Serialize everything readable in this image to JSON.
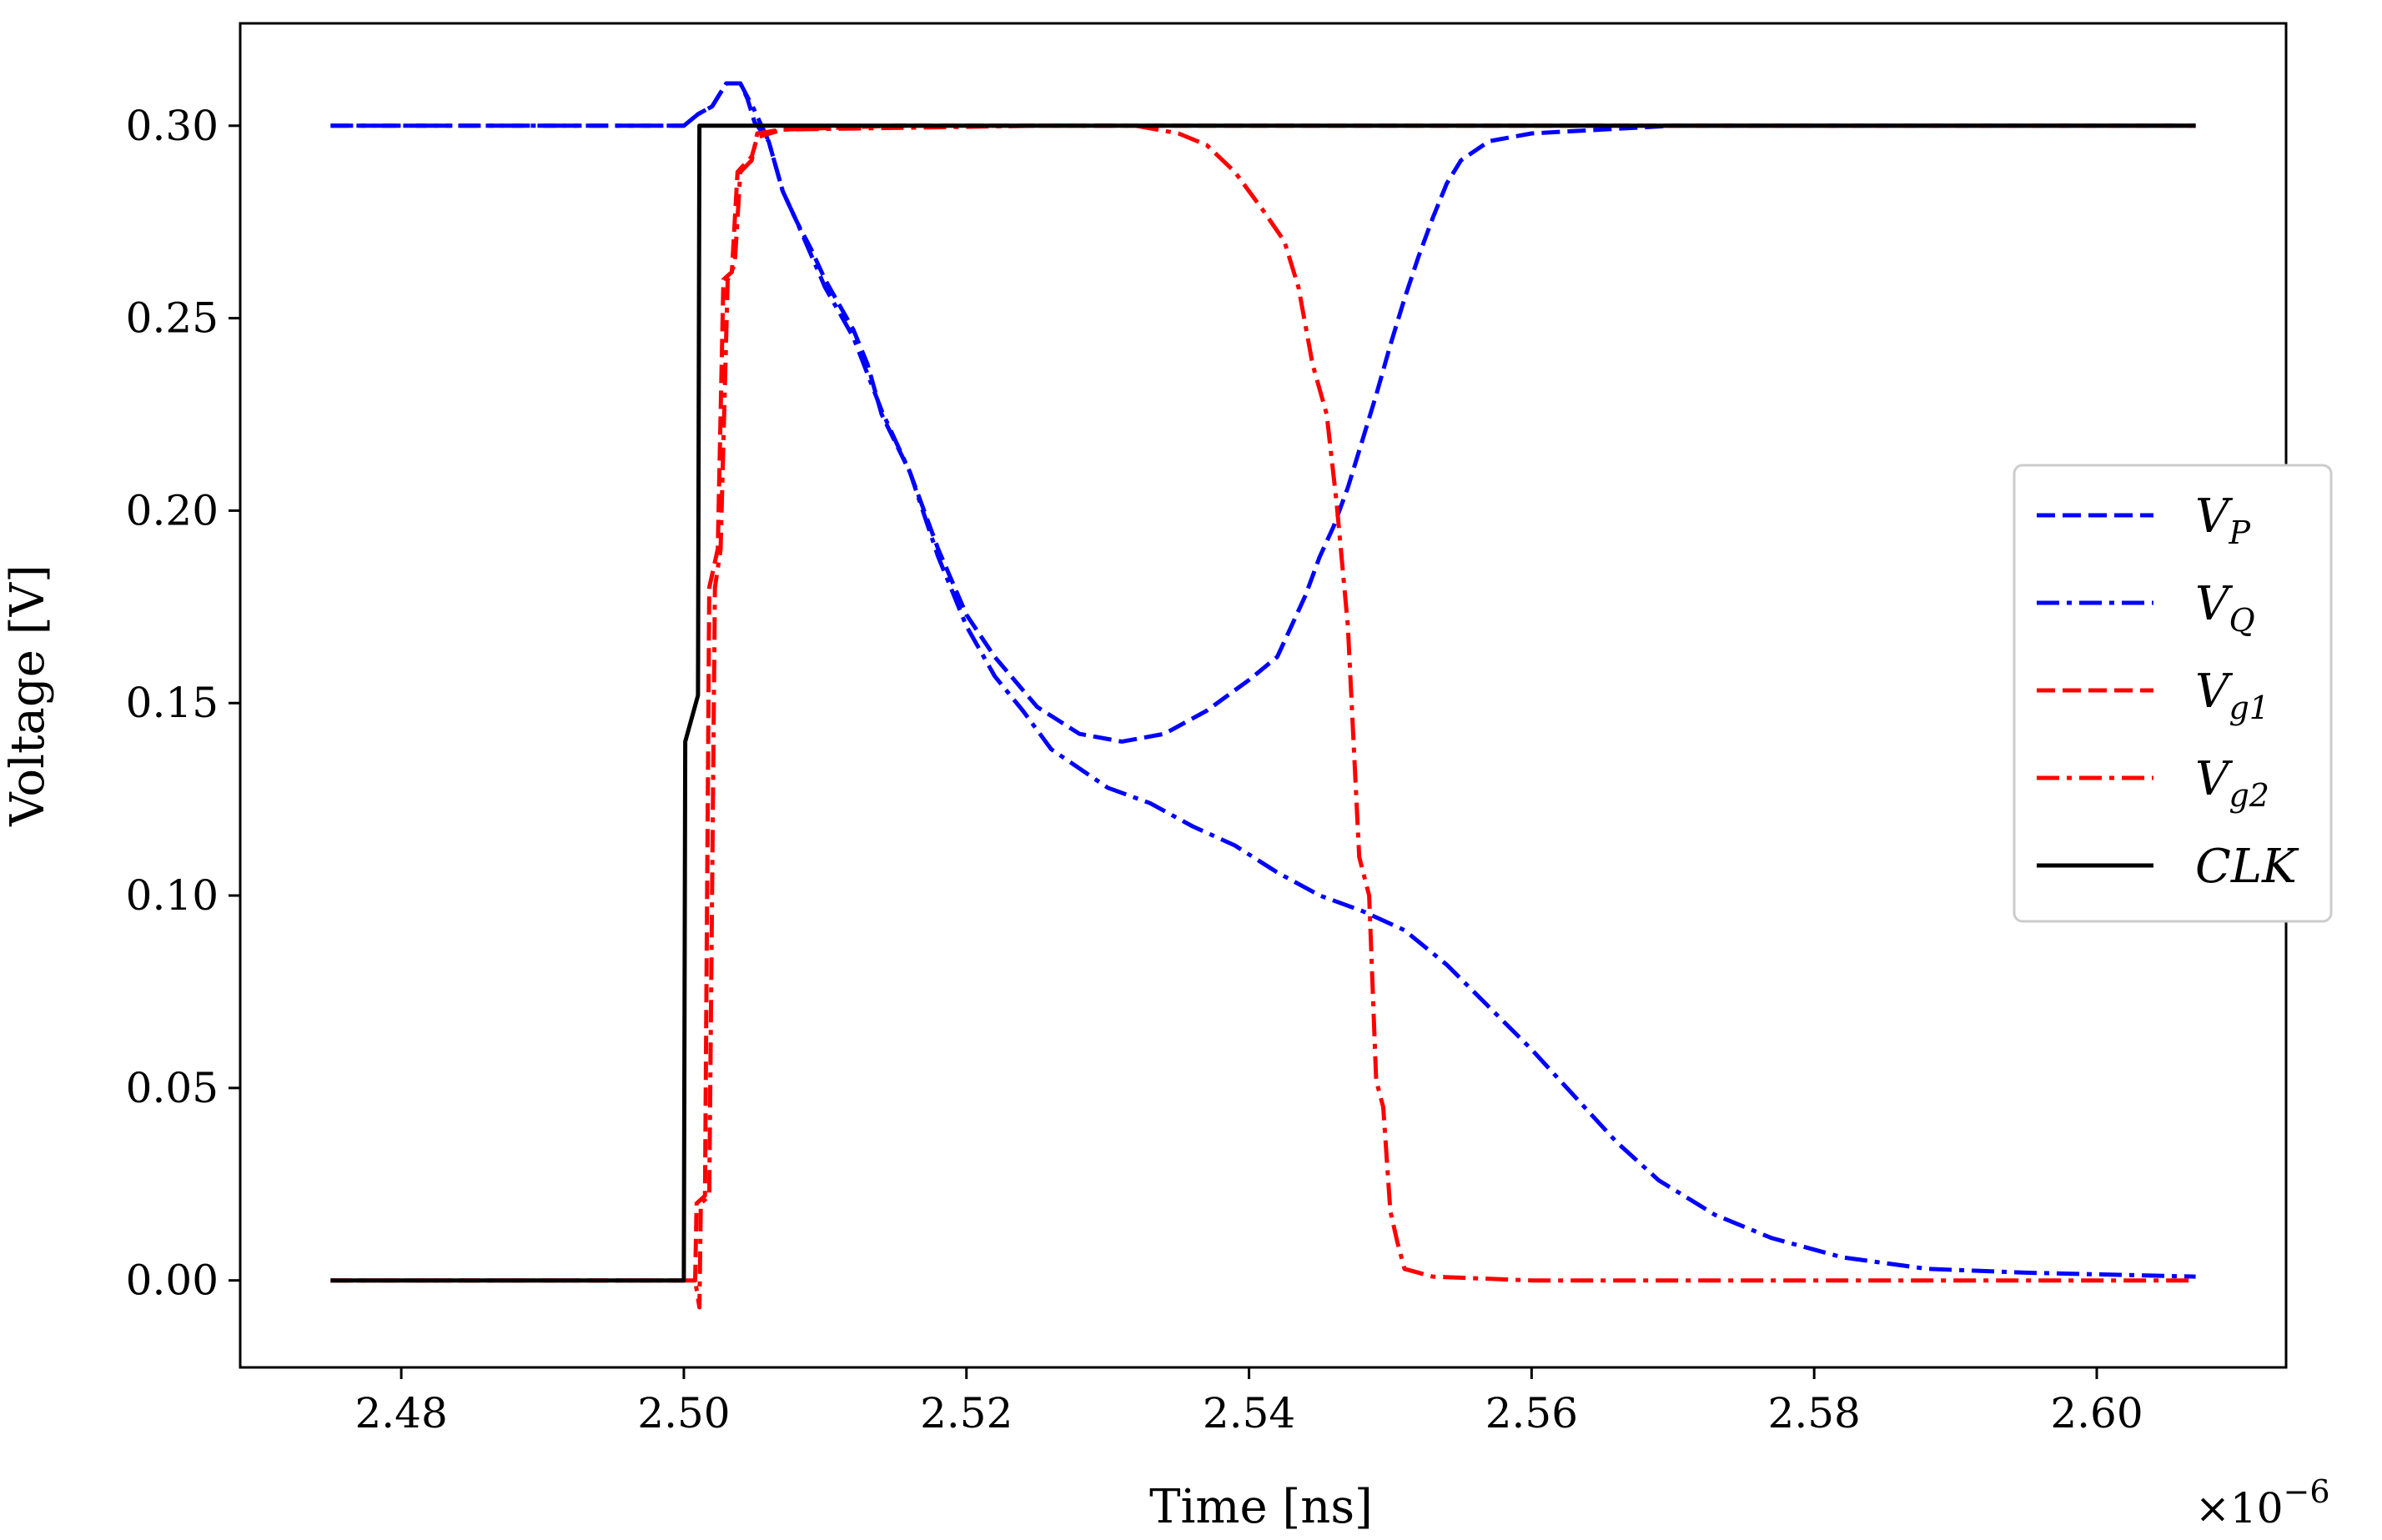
{
  "chart_data": {
    "type": "line",
    "title": "",
    "xlabel": "Time [ns]",
    "ylabel": "Voltage [V]",
    "x_multiplier_label": "×10",
    "x_multiplier_exponent": "−6",
    "xlim": [
      2.4686,
      2.6134
    ],
    "ylim": [
      -0.0226,
      0.3266
    ],
    "x_ticks": [
      2.48,
      2.5,
      2.52,
      2.54,
      2.56,
      2.58,
      2.6
    ],
    "x_tick_labels": [
      "2.48",
      "2.50",
      "2.52",
      "2.54",
      "2.56",
      "2.58",
      "2.60"
    ],
    "y_ticks": [
      0.0,
      0.05,
      0.1,
      0.15,
      0.2,
      0.25,
      0.3
    ],
    "y_tick_labels": [
      "0.00",
      "0.05",
      "0.10",
      "0.15",
      "0.20",
      "0.25",
      "0.30"
    ],
    "grid": false,
    "legend_position": "center-right",
    "series": [
      {
        "name": "V_P",
        "label_main": "V",
        "label_sub": "P",
        "color": "#0000ff",
        "dash": "dashed",
        "points": [
          [
            2.475,
            0.3
          ],
          [
            2.5,
            0.3
          ],
          [
            2.501,
            0.303
          ],
          [
            2.502,
            0.305
          ],
          [
            2.503,
            0.311
          ],
          [
            2.504,
            0.311
          ],
          [
            2.5045,
            0.307
          ],
          [
            2.505,
            0.301
          ],
          [
            2.506,
            0.296
          ],
          [
            2.507,
            0.283
          ],
          [
            2.508,
            0.275
          ],
          [
            2.509,
            0.268
          ],
          [
            2.51,
            0.26
          ],
          [
            2.512,
            0.247
          ],
          [
            2.513,
            0.238
          ],
          [
            2.514,
            0.225
          ],
          [
            2.516,
            0.21
          ],
          [
            2.518,
            0.19
          ],
          [
            2.52,
            0.173
          ],
          [
            2.522,
            0.162
          ],
          [
            2.525,
            0.149
          ],
          [
            2.528,
            0.142
          ],
          [
            2.531,
            0.14
          ],
          [
            2.534,
            0.142
          ],
          [
            2.537,
            0.148
          ],
          [
            2.54,
            0.156
          ],
          [
            2.542,
            0.162
          ],
          [
            2.543,
            0.17
          ],
          [
            2.544,
            0.178
          ],
          [
            2.545,
            0.188
          ],
          [
            2.546,
            0.196
          ],
          [
            2.547,
            0.206
          ],
          [
            2.548,
            0.218
          ],
          [
            2.549,
            0.23
          ],
          [
            2.55,
            0.243
          ],
          [
            2.551,
            0.255
          ],
          [
            2.552,
            0.266
          ],
          [
            2.553,
            0.276
          ],
          [
            2.554,
            0.285
          ],
          [
            2.555,
            0.291
          ],
          [
            2.557,
            0.296
          ],
          [
            2.56,
            0.298
          ],
          [
            2.565,
            0.299
          ],
          [
            2.57,
            0.3
          ],
          [
            2.607,
            0.3
          ]
        ]
      },
      {
        "name": "V_Q",
        "label_main": "V",
        "label_sub": "Q",
        "color": "#0000ff",
        "dash": "dashdot",
        "points": [
          [
            2.475,
            0.3
          ],
          [
            2.5,
            0.3
          ],
          [
            2.501,
            0.303
          ],
          [
            2.502,
            0.305
          ],
          [
            2.503,
            0.311
          ],
          [
            2.504,
            0.311
          ],
          [
            2.505,
            0.304
          ],
          [
            2.506,
            0.296
          ],
          [
            2.507,
            0.283
          ],
          [
            2.508,
            0.275
          ],
          [
            2.51,
            0.258
          ],
          [
            2.512,
            0.245
          ],
          [
            2.514,
            0.226
          ],
          [
            2.516,
            0.21
          ],
          [
            2.518,
            0.188
          ],
          [
            2.52,
            0.17
          ],
          [
            2.522,
            0.157
          ],
          [
            2.524,
            0.148
          ],
          [
            2.526,
            0.138
          ],
          [
            2.528,
            0.133
          ],
          [
            2.53,
            0.128
          ],
          [
            2.533,
            0.124
          ],
          [
            2.536,
            0.118
          ],
          [
            2.539,
            0.113
          ],
          [
            2.542,
            0.106
          ],
          [
            2.545,
            0.1
          ],
          [
            2.548,
            0.096
          ],
          [
            2.551,
            0.091
          ],
          [
            2.554,
            0.082
          ],
          [
            2.557,
            0.071
          ],
          [
            2.56,
            0.06
          ],
          [
            2.563,
            0.048
          ],
          [
            2.566,
            0.036
          ],
          [
            2.569,
            0.026
          ],
          [
            2.573,
            0.017
          ],
          [
            2.577,
            0.011
          ],
          [
            2.582,
            0.006
          ],
          [
            2.588,
            0.003
          ],
          [
            2.595,
            0.002
          ],
          [
            2.607,
            0.001
          ]
        ]
      },
      {
        "name": "V_g1",
        "label_main": "V",
        "label_sub": "g1",
        "color": "#ff0000",
        "dash": "dashed",
        "points": [
          [
            2.475,
            0.0
          ],
          [
            2.5008,
            0.0
          ],
          [
            2.5009,
            0.02
          ],
          [
            2.5015,
            0.022
          ],
          [
            2.5018,
            0.18
          ],
          [
            2.5024,
            0.19
          ],
          [
            2.5028,
            0.26
          ],
          [
            2.5034,
            0.262
          ],
          [
            2.5038,
            0.288
          ],
          [
            2.5048,
            0.292
          ],
          [
            2.5052,
            0.297
          ],
          [
            2.507,
            0.299
          ],
          [
            2.515,
            0.3
          ],
          [
            2.607,
            0.3
          ]
        ]
      },
      {
        "name": "V_g2",
        "label_main": "V",
        "label_sub": "g2",
        "color": "#ff0000",
        "dash": "dashdot",
        "points": [
          [
            2.475,
            0.0
          ],
          [
            2.5008,
            0.0
          ],
          [
            2.5011,
            -0.007
          ],
          [
            2.5012,
            0.02
          ],
          [
            2.5018,
            0.022
          ],
          [
            2.5022,
            0.18
          ],
          [
            2.5026,
            0.19
          ],
          [
            2.5031,
            0.26
          ],
          [
            2.5036,
            0.264
          ],
          [
            2.504,
            0.288
          ],
          [
            2.5048,
            0.291
          ],
          [
            2.5052,
            0.298
          ],
          [
            2.507,
            0.299
          ],
          [
            2.525,
            0.3
          ],
          [
            2.532,
            0.3
          ],
          [
            2.535,
            0.298
          ],
          [
            2.537,
            0.295
          ],
          [
            2.539,
            0.288
          ],
          [
            2.541,
            0.278
          ],
          [
            2.5425,
            0.27
          ],
          [
            2.5435,
            0.258
          ],
          [
            2.5445,
            0.238
          ],
          [
            2.5455,
            0.225
          ],
          [
            2.5462,
            0.202
          ],
          [
            2.547,
            0.17
          ],
          [
            2.5478,
            0.11
          ],
          [
            2.5485,
            0.1
          ],
          [
            2.549,
            0.052
          ],
          [
            2.5495,
            0.045
          ],
          [
            2.55,
            0.018
          ],
          [
            2.5505,
            0.01
          ],
          [
            2.551,
            0.003
          ],
          [
            2.553,
            0.001
          ],
          [
            2.56,
            0.0
          ],
          [
            2.607,
            0.0
          ]
        ]
      },
      {
        "name": "CLK",
        "label_main": "CLK",
        "label_sub": "",
        "color": "#000000",
        "dash": "solid",
        "points": [
          [
            2.475,
            0.0
          ],
          [
            2.5,
            0.0
          ],
          [
            2.5001,
            0.14
          ],
          [
            2.501,
            0.152
          ],
          [
            2.5011,
            0.3
          ],
          [
            2.607,
            0.3
          ]
        ]
      }
    ]
  }
}
